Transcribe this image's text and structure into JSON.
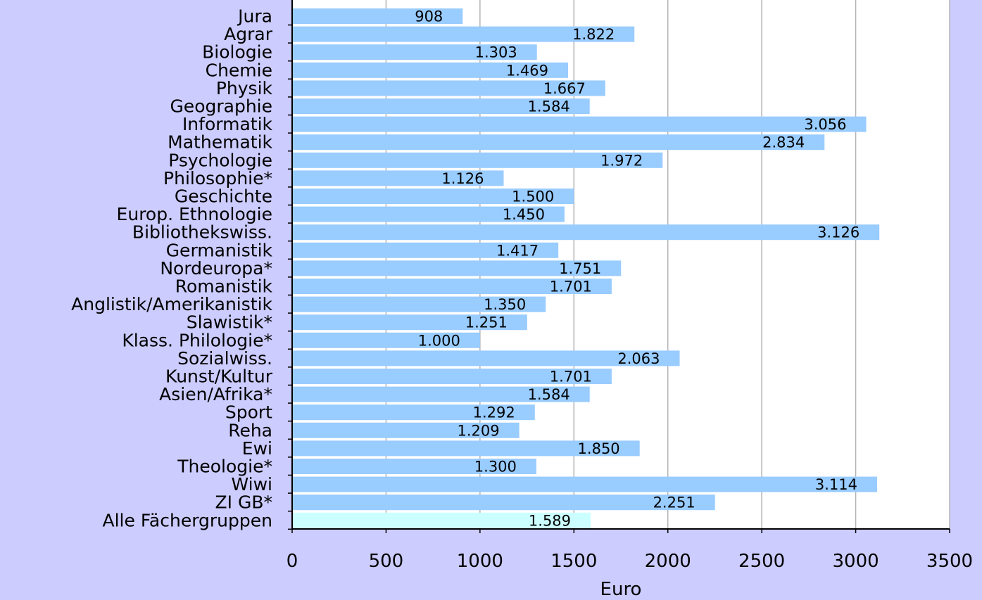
{
  "colors": {
    "page_background": "#ccccff",
    "plot_background": "#ffffff",
    "bar": "#99ccff",
    "bar_highlight": "#ccffff",
    "gridline": "#b3b3b3",
    "axis": "#000000",
    "text": "#000000"
  },
  "chart_data": {
    "type": "bar",
    "orientation": "horizontal",
    "title": "",
    "xlabel": "Euro",
    "ylabel": "",
    "xlim": [
      0,
      3500
    ],
    "x_ticks": [
      0,
      500,
      1000,
      1500,
      2000,
      2500,
      3000,
      3500
    ],
    "x_tick_labels": [
      "0",
      "500",
      "1000",
      "1500",
      "2000",
      "2500",
      "3000",
      "3500"
    ],
    "grid": "vertical",
    "legend": "none",
    "highlighted_category": "Alle Fächergruppen",
    "categories": [
      "Jura",
      "Agrar",
      "Biologie",
      "Chemie",
      "Physik",
      "Geographie",
      "Informatik",
      "Mathematik",
      "Psychologie",
      "Philosophie*",
      "Geschichte",
      "Europ. Ethnologie",
      "Bibliothekswiss.",
      "Germanistik",
      "Nordeuropa*",
      "Romanistik",
      "Anglistik/Amerikanistik",
      "Slawistik*",
      "Klass. Philologie*",
      "Sozialwiss.",
      "Kunst/Kultur",
      "Asien/Afrika*",
      "Sport",
      "Reha",
      "Ewi",
      "Theologie*",
      "Wiwi",
      "ZI GB*",
      "Alle Fächergruppen"
    ],
    "values": [
      908,
      1822,
      1303,
      1469,
      1667,
      1584,
      3056,
      2834,
      1972,
      1126,
      1500,
      1450,
      3126,
      1417,
      1751,
      1701,
      1350,
      1251,
      1000,
      2063,
      1701,
      1584,
      1292,
      1209,
      1850,
      1300,
      3114,
      2251,
      1589
    ],
    "value_labels": [
      "908",
      "1.822",
      "1.303",
      "1.469",
      "1.667",
      "1.584",
      "3.056",
      "2.834",
      "1.972",
      "1.126",
      "1.500",
      "1.450",
      "3.126",
      "1.417",
      "1.751",
      "1.701",
      "1.350",
      "1.251",
      "1.000",
      "2.063",
      "1.701",
      "1.584",
      "1.292",
      "1.209",
      "1.850",
      "1.300",
      "3.114",
      "2.251",
      "1.589"
    ]
  }
}
